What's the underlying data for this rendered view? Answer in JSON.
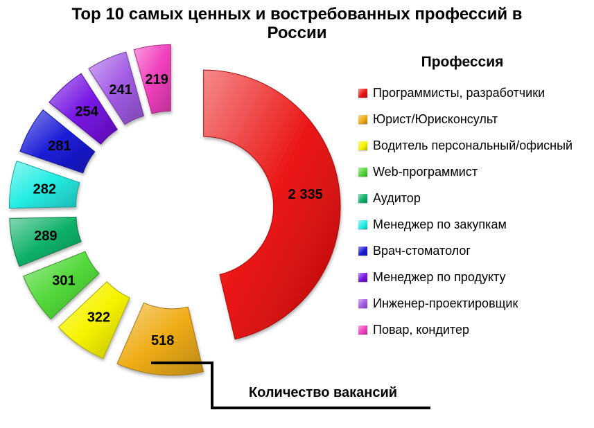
{
  "title": "Top 10 самых ценных и востребованных профессий в России",
  "legend": {
    "title": "Профессия"
  },
  "callout": {
    "label": "Количество вакансий"
  },
  "chart_data": {
    "type": "pie",
    "subtype": "exploded-doughnut",
    "title": "Top 10 самых ценных и востребованных профессий в России",
    "legend_title": "Профессия",
    "value_label": "Количество вакансий",
    "direction": "clockwise",
    "start_angle_deg": 0,
    "donut_hole_ratio": 0.51,
    "exploded": true,
    "legend_position": "right",
    "grid": false,
    "categories": [
      "Программисты, разработчики",
      "Юрист/Юрисконсульт",
      "Водитель персональный/офисный",
      "Web-программист",
      "Аудитор",
      "Менеджер по закупкам",
      "Врач-стоматолог",
      "Менеджер по продукту",
      "Инженер-проектировщик",
      "Повар, кондитер"
    ],
    "values": [
      2335,
      518,
      322,
      301,
      289,
      282,
      281,
      254,
      241,
      219
    ],
    "data_labels": [
      "2 335",
      "518",
      "322",
      "301",
      "289",
      "282",
      "281",
      "254",
      "241",
      "219"
    ],
    "colors": [
      "#eb1414",
      "#efac17",
      "#f7f300",
      "#52d83a",
      "#10b169",
      "#25ede3",
      "#1c1cd8",
      "#7714e3",
      "#a35be5",
      "#f140be"
    ],
    "title_color": "#000000",
    "label_color": "#000000",
    "callout_line_color": "#000000"
  }
}
